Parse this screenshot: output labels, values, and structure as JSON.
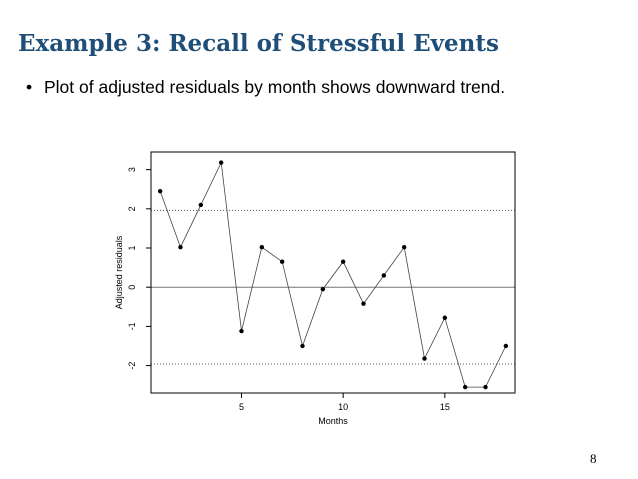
{
  "slide": {
    "title": "Example 3: Recall of Stressful Events",
    "bullet_marker": "•",
    "bullet_text": "Plot of adjusted residuals by month shows downward trend.",
    "page_number": "8"
  },
  "chart_data": {
    "type": "line",
    "title": "",
    "xlabel": "Months",
    "ylabel": "Adjusted residuals",
    "xlim": [
      0.55,
      18.45
    ],
    "ylim": [
      -2.7,
      3.45
    ],
    "x_ticks": [
      5,
      10,
      15
    ],
    "y_ticks": [
      -2,
      -1,
      0,
      1,
      2,
      3
    ],
    "reference_lines": [
      {
        "y": 1.96,
        "style": "dotted"
      },
      {
        "y": 0,
        "style": "solid"
      },
      {
        "y": -1.96,
        "style": "dotted"
      }
    ],
    "series": [
      {
        "x": [
          1,
          2,
          3,
          4,
          5,
          6,
          7,
          8,
          9,
          10,
          11,
          12,
          13,
          14,
          15,
          16,
          17,
          18
        ],
        "values": [
          2.45,
          1.02,
          2.1,
          3.18,
          -1.12,
          1.02,
          0.65,
          -1.5,
          -0.05,
          0.65,
          -0.42,
          0.3,
          1.02,
          -1.82,
          -0.78,
          -2.55,
          -2.55,
          -1.5
        ]
      }
    ],
    "line_color": "#444444",
    "marker_color": "#000000"
  }
}
